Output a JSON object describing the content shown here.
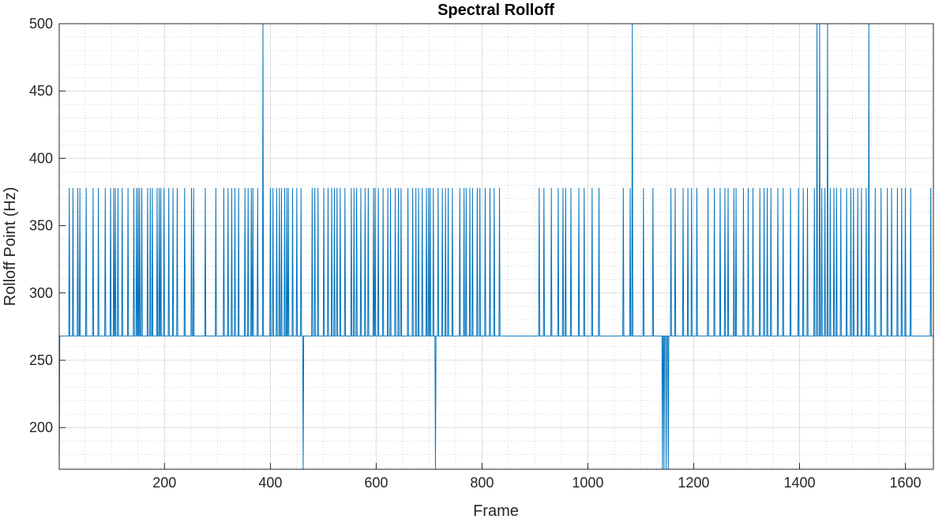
{
  "chart_data": {
    "type": "line",
    "title": "Spectral Rolloff",
    "xlabel": "Frame",
    "ylabel": "Rolloff Point (Hz)",
    "xlim": [
      1,
      1653
    ],
    "ylim": [
      169,
      500
    ],
    "xticks": [
      200,
      400,
      600,
      800,
      1000,
      1200,
      1400,
      1600
    ],
    "yticks": [
      200,
      250,
      300,
      350,
      400,
      450,
      500
    ],
    "grid": true,
    "minor_grid": true,
    "line_color": "#0072bd",
    "baseline_value": 268,
    "high_value": 378,
    "low_value": 169,
    "clip_value": 500,
    "spikes_high_frames": [
      20,
      27,
      36,
      40,
      52,
      65,
      75,
      88,
      98,
      104,
      107,
      112,
      120,
      131,
      142,
      147,
      150,
      153,
      157,
      168,
      173,
      177,
      186,
      190,
      193,
      199,
      208,
      216,
      224,
      238,
      251,
      255,
      277,
      297,
      312,
      320,
      327,
      333,
      340,
      352,
      358,
      364,
      367,
      376,
      400,
      405,
      412,
      417,
      421,
      427,
      431,
      434,
      442,
      450,
      458,
      479,
      484,
      490,
      501,
      509,
      516,
      521,
      526,
      532,
      541,
      553,
      558,
      563,
      571,
      579,
      585,
      595,
      598,
      604,
      613,
      622,
      627,
      636,
      642,
      647,
      660,
      669,
      675,
      680,
      687,
      695,
      699,
      702,
      708,
      717,
      725,
      731,
      736,
      744,
      758,
      766,
      770,
      777,
      782,
      791,
      796,
      806,
      815,
      823,
      833,
      908,
      917,
      931,
      944,
      953,
      958,
      968,
      983,
      993,
      1008,
      1021,
      1067,
      1080,
      1105,
      1123,
      1157,
      1165,
      1180,
      1189,
      1196,
      1206,
      1227,
      1239,
      1250,
      1259,
      1265,
      1276,
      1280,
      1294,
      1303,
      1312,
      1325,
      1333,
      1339,
      1346,
      1359,
      1369,
      1383,
      1398,
      1407,
      1415,
      1428,
      1442,
      1448,
      1458,
      1465,
      1470,
      1478,
      1489,
      1497,
      1502,
      1510,
      1517,
      1526,
      1543,
      1554,
      1566,
      1574,
      1585,
      1593,
      1600,
      1610,
      1648
    ],
    "spikes_clip_frames": [
      386,
      1084,
      1433,
      1438,
      1453,
      1531
    ],
    "spikes_low_frames": [
      1,
      462,
      712,
      1141,
      1144,
      1148,
      1152
    ]
  }
}
